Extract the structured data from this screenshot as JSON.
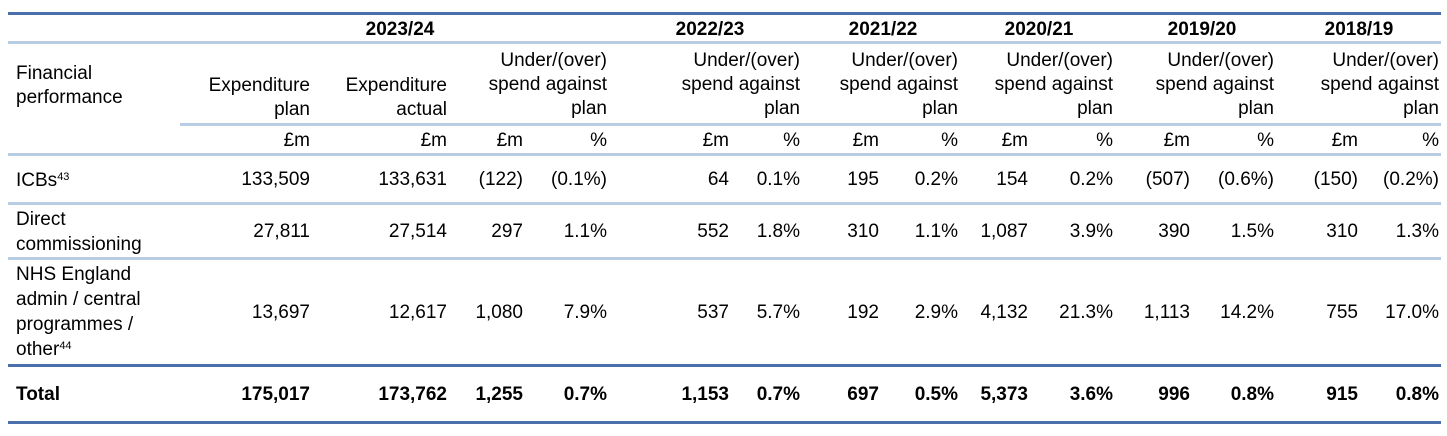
{
  "years": {
    "y2324": "2023/24",
    "y2223": "2022/23",
    "y2122": "2021/22",
    "y2021": "2020/21",
    "y1920": "2019/20",
    "y1819": "2018/19"
  },
  "header": {
    "row_label": [
      "Financial",
      "performance"
    ],
    "expenditure_plan": [
      "Expenditure",
      "plan"
    ],
    "expenditure_actual": [
      "Expenditure",
      "actual"
    ],
    "under_over": [
      "Under/(over)",
      "spend against",
      "plan"
    ],
    "unit_m": "£m",
    "unit_pct": "%"
  },
  "rows": [
    {
      "label": "ICBs",
      "note": "43",
      "plan": "133,509",
      "actual": "133,631",
      "vals": [
        "(122)",
        "(0.1%)",
        "64",
        "0.1%",
        "195",
        "0.2%",
        "154",
        "0.2%",
        "(507)",
        "(0.6%)",
        "(150)",
        "(0.2%)"
      ]
    },
    {
      "label_lines": [
        "Direct",
        "commissioning"
      ],
      "plan": "27,811",
      "actual": "27,514",
      "vals": [
        "297",
        "1.1%",
        "552",
        "1.8%",
        "310",
        "1.1%",
        "1,087",
        "3.9%",
        "390",
        "1.5%",
        "310",
        "1.3%"
      ]
    },
    {
      "label_lines": [
        "NHS England",
        "admin / central",
        "programmes /",
        "other"
      ],
      "note": "44",
      "plan": "13,697",
      "actual": "12,617",
      "vals": [
        "1,080",
        "7.9%",
        "537",
        "5.7%",
        "192",
        "2.9%",
        "4,132",
        "21.3%",
        "1,113",
        "14.2%",
        "755",
        "17.0%"
      ]
    }
  ],
  "total": {
    "label": "Total",
    "plan": "175,017",
    "actual": "173,762",
    "vals": [
      "1,255",
      "0.7%",
      "1,153",
      "0.7%",
      "697",
      "0.5%",
      "5,373",
      "3.6%",
      "996",
      "0.8%",
      "915",
      "0.8%"
    ]
  },
  "colors": {
    "rule_dark": "#4a6fab",
    "rule_light": "#b8cce4"
  }
}
